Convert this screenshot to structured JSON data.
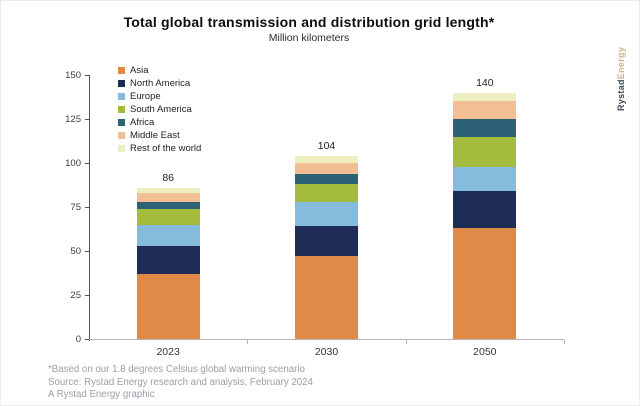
{
  "chart": {
    "title": "Total global transmission and distribution grid length*",
    "subtitle": "Million kilometers"
  },
  "logo": {
    "brand_primary": "Rystad",
    "brand_secondary": "Energy"
  },
  "footnote": {
    "line1": "*Based on our 1.8 degrees Celsius global warming scenario",
    "line2": "Source: Rystad Energy research and analysis, February 2024",
    "line3": "A Rystad Energy graphic"
  },
  "chart_data": {
    "type": "bar",
    "stacked": true,
    "title": "Total global transmission and distribution grid length*",
    "subtitle": "Million kilometers",
    "categories": [
      "2023",
      "2030",
      "2050"
    ],
    "series": [
      {
        "name": "Asia",
        "color": "#E08A47",
        "values": [
          37,
          47,
          63
        ]
      },
      {
        "name": "North America",
        "color": "#1F2C55",
        "values": [
          16,
          17,
          21
        ]
      },
      {
        "name": "Europe",
        "color": "#85BBDC",
        "values": [
          12,
          14,
          14
        ]
      },
      {
        "name": "South America",
        "color": "#A3BC3D",
        "values": [
          9,
          10,
          17
        ]
      },
      {
        "name": "Africa",
        "color": "#2E6076",
        "values": [
          4,
          6,
          10
        ]
      },
      {
        "name": "Middle East",
        "color": "#F2BE93",
        "values": [
          5,
          6,
          10
        ]
      },
      {
        "name": "Rest of the world",
        "color": "#EDEFC3",
        "values": [
          3,
          4,
          5
        ]
      }
    ],
    "totals": [
      86,
      104,
      140
    ],
    "yticks": [
      0,
      25,
      50,
      75,
      100,
      125,
      150
    ],
    "ylim": [
      0,
      150
    ],
    "xlabel": "",
    "ylabel": "",
    "grid": false,
    "legend_position": "top-left",
    "axis_color": "#555555",
    "baseline_color": "#B5B5B5"
  }
}
